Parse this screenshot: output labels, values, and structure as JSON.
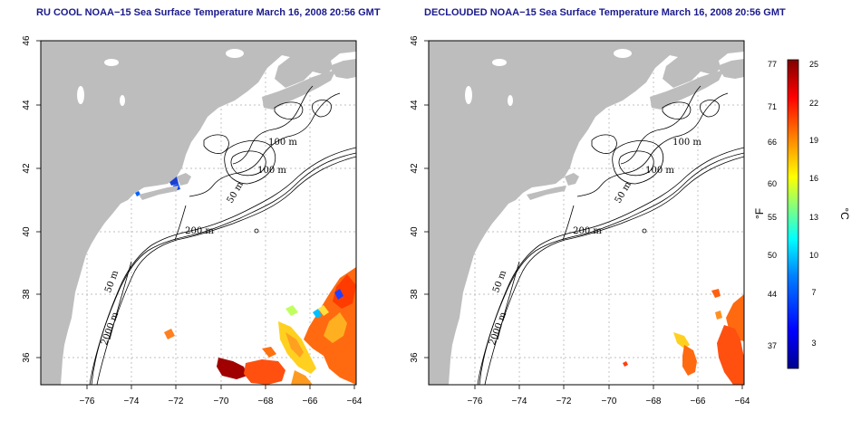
{
  "titles": {
    "left": "RU COOL NOAA−15 Sea Surface Temperature March 16, 2008 20:56 GMT",
    "right": "DECLOUDED NOAA−15 Sea Surface Temperature March 16, 2008 20:56 GMT"
  },
  "axes": {
    "x_ticks": [
      "−76",
      "−74",
      "−72",
      "−70",
      "−68",
      "−66",
      "−64"
    ],
    "y_ticks": [
      "46",
      "44",
      "42",
      "40",
      "38",
      "36"
    ]
  },
  "contour_labels": {
    "left": [
      "100 m",
      "100 m",
      "50 m",
      "200 m",
      "50 m",
      "2000 m"
    ],
    "right": [
      "100 m",
      "100 m",
      "50 m",
      "200 m",
      "50 m",
      "2000 m"
    ]
  },
  "colorbar": {
    "fahrenheit_ticks": [
      "77",
      "71",
      "66",
      "60",
      "55",
      "50",
      "44",
      "37"
    ],
    "celsius_ticks": [
      "25",
      "22",
      "19",
      "16",
      "13",
      "10",
      "7",
      "3"
    ],
    "fahrenheit_unit": "°F",
    "celsius_unit": "°C",
    "colors": [
      "#00008f",
      "#0000ff",
      "#0080ff",
      "#00ffff",
      "#80ff80",
      "#ffff00",
      "#ff8000",
      "#ff0000",
      "#800000"
    ]
  },
  "colors": {
    "land": "#bdbdbd",
    "title": "#1a1a8c",
    "ocean": "#ffffff"
  }
}
